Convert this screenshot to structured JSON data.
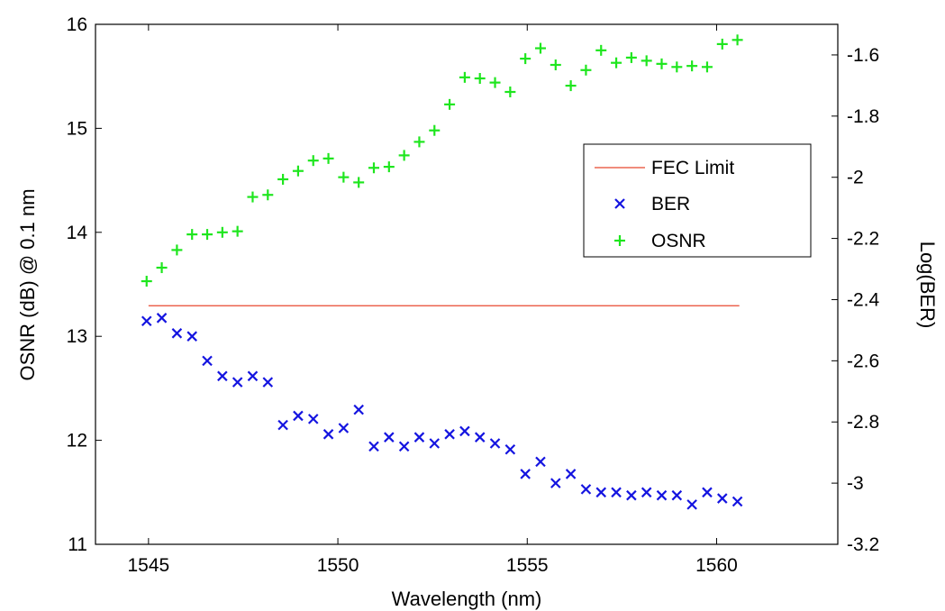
{
  "chart_data": {
    "type": "scatter",
    "title": "",
    "xlabel": "Wavelength (nm)",
    "ylabel_left": "OSNR (dB) @ 0.1 nm",
    "ylabel_right": "Log(BER)",
    "xlim": [
      1543.6,
      1563.2
    ],
    "ylim_left": [
      11,
      16
    ],
    "ylim_right": [
      -3.2,
      -1.5
    ],
    "x_ticks": [
      1545,
      1550,
      1555,
      1560
    ],
    "y_left_ticks": [
      11,
      12,
      13,
      14,
      15,
      16
    ],
    "y_right_ticks": [
      -3.2,
      -3,
      -2.8,
      -2.6,
      -2.4,
      -2.2,
      -2,
      -1.8,
      -1.6
    ],
    "y_right_tick_labels": [
      "-3.2",
      "-3",
      "-2.8",
      "-2.6",
      "-2.4",
      "-2.2",
      "-2",
      "-1.8",
      "-1.6"
    ],
    "grid": false,
    "legend_position": "center-right",
    "colors": {
      "fec": "#e8472f",
      "ber": "#1414e0",
      "osnr": "#1ee61e"
    },
    "fec_limit": {
      "name": "FEC Limit",
      "axis": "right",
      "y": -2.42,
      "x_range": [
        1545,
        1560.6
      ]
    },
    "series": [
      {
        "name": "BER",
        "axis": "right",
        "marker": "x",
        "x": [
          1544.95,
          1545.35,
          1545.75,
          1546.15,
          1546.55,
          1546.95,
          1547.35,
          1547.75,
          1548.15,
          1548.55,
          1548.95,
          1549.35,
          1549.75,
          1550.15,
          1550.55,
          1550.95,
          1551.35,
          1551.75,
          1552.15,
          1552.55,
          1552.95,
          1553.35,
          1553.75,
          1554.15,
          1554.55,
          1554.95,
          1555.35,
          1555.75,
          1556.15,
          1556.55,
          1556.95,
          1557.35,
          1557.75,
          1558.15,
          1558.55,
          1558.95,
          1559.35,
          1559.75,
          1560.15,
          1560.55
        ],
        "y": [
          -2.47,
          -2.46,
          -2.51,
          -2.52,
          -2.6,
          -2.65,
          -2.67,
          -2.65,
          -2.67,
          -2.81,
          -2.78,
          -2.79,
          -2.84,
          -2.82,
          -2.76,
          -2.88,
          -2.85,
          -2.88,
          -2.85,
          -2.87,
          -2.84,
          -2.83,
          -2.85,
          -2.87,
          -2.89,
          -2.97,
          -2.93,
          -3.0,
          -2.97,
          -3.02,
          -3.03,
          -3.03,
          -3.04,
          -3.03,
          -3.04,
          -3.04,
          -3.07,
          -3.03,
          -3.05,
          -3.06
        ]
      },
      {
        "name": "OSNR",
        "axis": "left",
        "marker": "+",
        "x": [
          1544.95,
          1545.35,
          1545.75,
          1546.15,
          1546.55,
          1546.95,
          1547.35,
          1547.75,
          1548.15,
          1548.55,
          1548.95,
          1549.35,
          1549.75,
          1550.15,
          1550.55,
          1550.95,
          1551.35,
          1551.75,
          1552.15,
          1552.55,
          1552.95,
          1553.35,
          1553.75,
          1554.15,
          1554.55,
          1554.95,
          1555.35,
          1555.75,
          1556.15,
          1556.55,
          1556.95,
          1557.35,
          1557.75,
          1558.15,
          1558.55,
          1558.95,
          1559.35,
          1559.75,
          1560.15,
          1560.55
        ],
        "y": [
          13.53,
          13.66,
          13.83,
          13.98,
          13.98,
          14.0,
          14.01,
          14.34,
          14.36,
          14.51,
          14.59,
          14.69,
          14.71,
          14.53,
          14.48,
          14.62,
          14.63,
          14.74,
          14.87,
          14.98,
          15.23,
          15.49,
          15.48,
          15.44,
          15.35,
          15.67,
          15.77,
          15.61,
          15.41,
          15.56,
          15.75,
          15.63,
          15.68,
          15.65,
          15.62,
          15.59,
          15.6,
          15.59,
          15.81,
          15.85
        ]
      }
    ]
  }
}
